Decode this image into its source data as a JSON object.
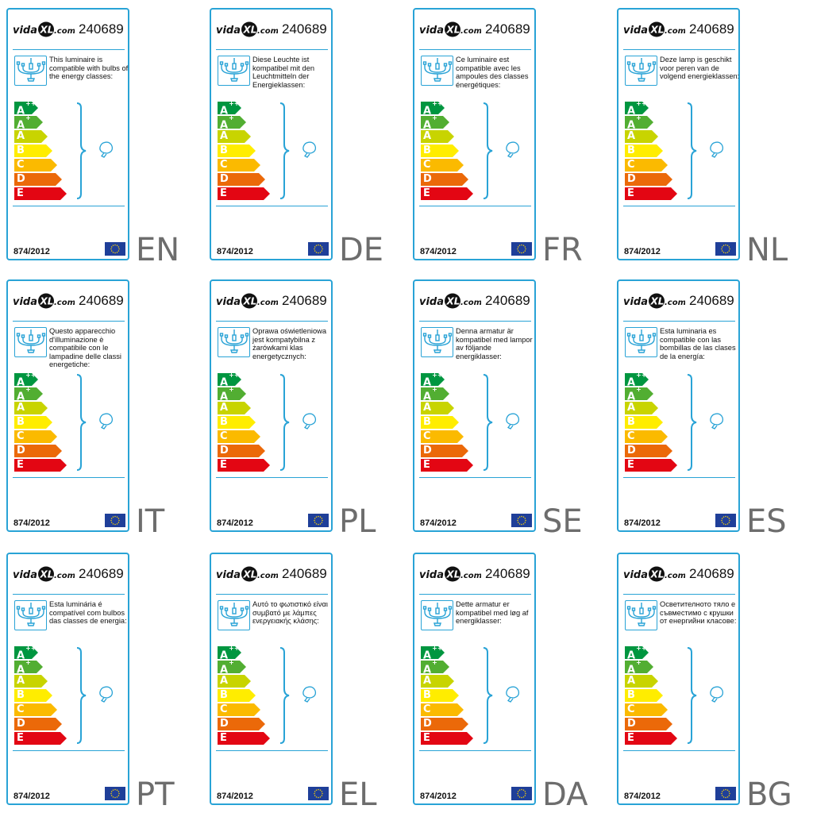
{
  "brand": "vidaXL.com",
  "product_code": "240689",
  "regulation": "874/2012",
  "icons": {
    "logo": "vidaxl-logo",
    "chandelier": "chandelier-icon",
    "brace": "curly-brace",
    "bulb": "light-bulb-icon",
    "flag": "eu-flag-icon"
  },
  "energy_classes": [
    {
      "letter": "A",
      "plus": "++",
      "color": "#009640"
    },
    {
      "letter": "A",
      "plus": "+",
      "color": "#52ae32"
    },
    {
      "letter": "A",
      "plus": "",
      "color": "#c8d400"
    },
    {
      "letter": "B",
      "plus": "",
      "color": "#ffed00"
    },
    {
      "letter": "C",
      "plus": "",
      "color": "#fbba00"
    },
    {
      "letter": "D",
      "plus": "",
      "color": "#eb6909"
    },
    {
      "letter": "E",
      "plus": "",
      "color": "#e30613"
    }
  ],
  "labels": [
    {
      "lang": "EN",
      "text": "This luminaire is compatible with bulbs of the energy classes:"
    },
    {
      "lang": "DE",
      "text": "Diese Leuchte ist kompatibel mit den Leuchtmitteln der Energieklassen:"
    },
    {
      "lang": "FR",
      "text": "Ce luminaire est compatible avec les ampoules des classes énergétiques:"
    },
    {
      "lang": "NL",
      "text": "Deze lamp is geschikt voor peren van de volgend energieklassen:"
    },
    {
      "lang": "IT",
      "text": "Questo apparecchio d'illuminazione è compatibile con le lampadine delle classi energetiche:"
    },
    {
      "lang": "PL",
      "text": "Oprawa oświetleniowa jest kompatybilna z żarówkami klas energetycznych:"
    },
    {
      "lang": "SE",
      "text": "Denna armatur är kompatibel med lampor av följande energiklasser:"
    },
    {
      "lang": "ES",
      "text": "Esta luminaria es compatible con las bombillas de las clases de la energía:"
    },
    {
      "lang": "PT",
      "text": "Esta luminária é compatível com bulbos das classes de energia:"
    },
    {
      "lang": "EL",
      "text": "Αυτό το φωτιστικό είναι συμβατό με λάμπες ενεργειακής κλάσης:"
    },
    {
      "lang": "DA",
      "text": "Dette armatur er kompatibel med løg af energiklasser:"
    },
    {
      "lang": "BG",
      "text": "Осветителното тяло е съвместимо с крушки от енергийни класове:"
    }
  ]
}
